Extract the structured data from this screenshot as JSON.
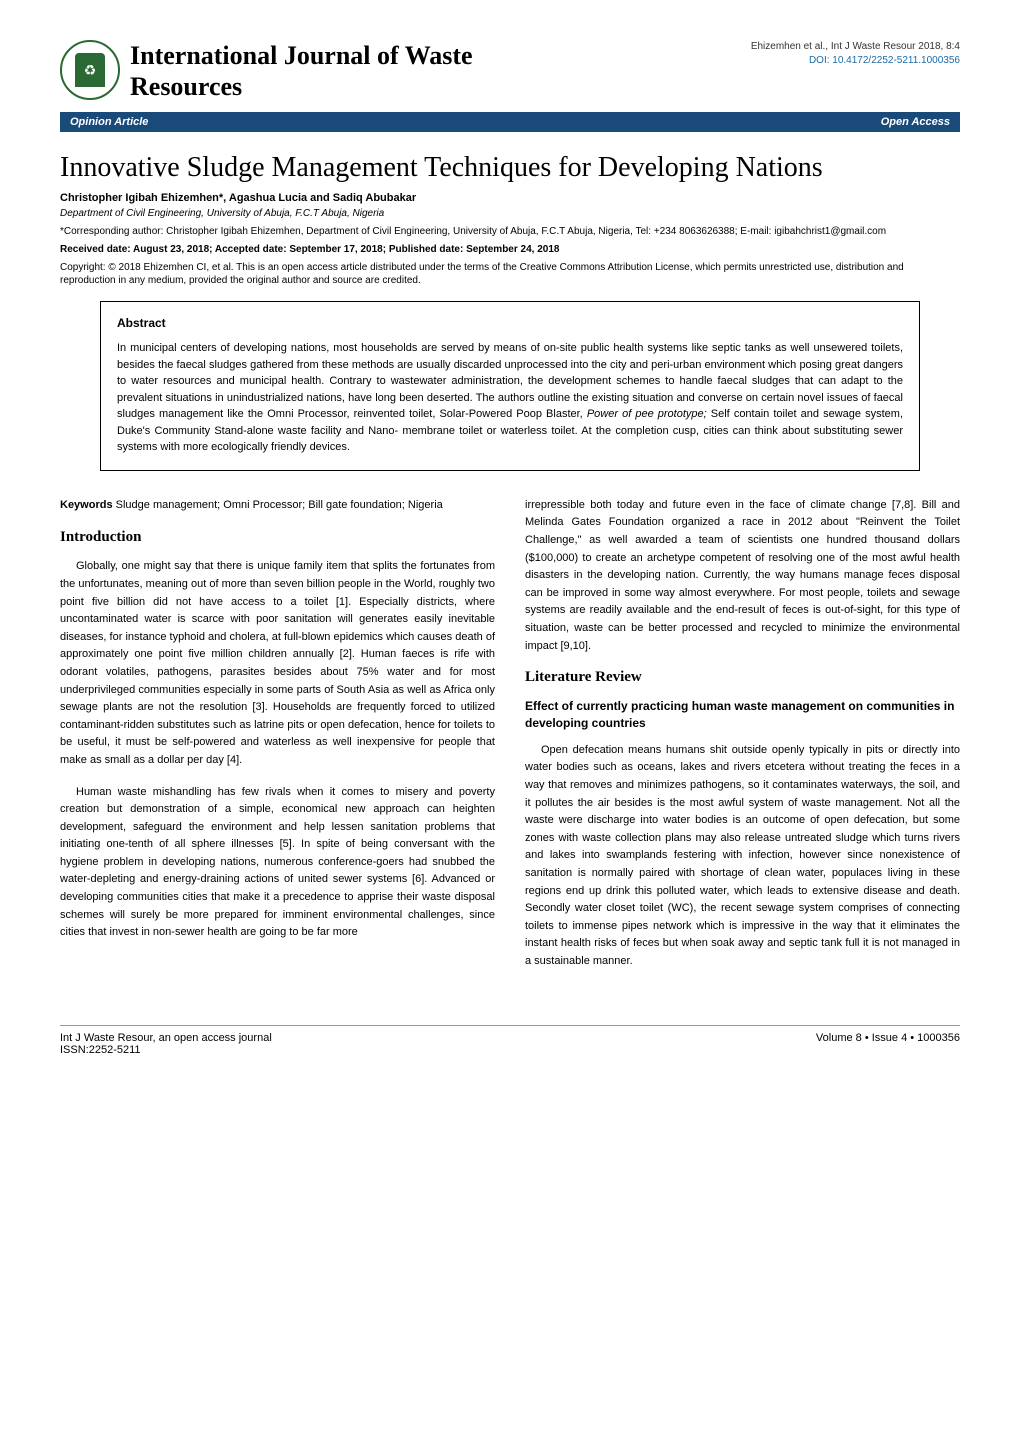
{
  "header": {
    "journal_title": "International Journal of Waste Resources",
    "citation": "Ehizemhen et al., Int J Waste Resour 2018, 8:4",
    "doi": "DOI: 10.4172/2252-5211.1000356",
    "doi_color": "#1a6ba8",
    "logo_text": "♻",
    "logo_border_color": "#2a6934",
    "issn": "ISSN: 2252-5211"
  },
  "bar": {
    "left": "Opinion Article",
    "right": "Open Access",
    "bg_color": "#1a4a7a"
  },
  "article": {
    "title": "Innovative Sludge Management Techniques for Developing Nations",
    "authors": "Christopher Igibah Ehizemhen*, Agashua Lucia and Sadiq Abubakar",
    "affiliation": "Department of Civil Engineering, University of Abuja, F.C.T Abuja, Nigeria",
    "corresponding": "*Corresponding author: Christopher Igibah Ehizemhen, Department of Civil Engineering, University of Abuja, F.C.T Abuja, Nigeria, Tel: +234 8063626388; E-mail: igibahchrist1@gmail.com",
    "dates": "Received date: August 23, 2018; Accepted date: September 17, 2018; Published date: September 24, 2018",
    "copyright": "Copyright: © 2018 Ehizemhen CI, et al. This is an open access article distributed under the terms of the Creative Commons Attribution License, which permits unrestricted use, distribution and reproduction in any medium, provided the original author and source are credited."
  },
  "abstract": {
    "heading": "Abstract",
    "text_a": "In municipal centers of developing nations, most households are served by means of on-site public health systems like septic tanks as well unsewered toilets, besides the faecal sludges gathered from these methods are usually discarded unprocessed into the city and peri-urban environment which posing great dangers to water resources and municipal health. Contrary to wastewater administration, the development schemes to handle faecal sludges that can adapt to the prevalent situations in unindustrialized nations, have long been deserted. The authors outline the existing situation and converse on certain novel issues of faecal sludges management like the Omni Processor, reinvented toilet, Solar-Powered Poop Blaster, ",
    "text_ital": "Power of pee prototype;",
    "text_b": " Self contain toilet and sewage system, Duke's Community Stand-alone waste facility and Nano- membrane toilet or waterless toilet. At the completion cusp, cities can think about substituting sewer systems with more ecologically friendly devices."
  },
  "keywords": {
    "label": "Keywords",
    "text": "Sludge management; Omni Processor; Bill gate foundation; Nigeria"
  },
  "sections": {
    "intro_heading": "Introduction",
    "intro_p1": "Globally, one might say that there is unique family item that splits the fortunates from the unfortunates, meaning out of more than seven billion people in the World, roughly two point five billion did not have access to a toilet [1]. Especially districts, where uncontaminated water is scarce with poor sanitation will generates easily inevitable diseases, for instance typhoid and cholera, at full-blown epidemics which causes death of approximately one point five million children annually [2]. Human faeces is rife with odorant volatiles, pathogens, parasites besides about 75% water and for most underprivileged communities especially in some parts of South Asia as well as Africa only sewage plants are not the resolution [3]. Households are frequently forced to utilized contaminant-ridden substitutes such as latrine pits or open defecation, hence for toilets to be useful, it must be self-powered and waterless as well inexpensive for people that make as small as a dollar per day [4].",
    "intro_p2": "Human waste mishandling has few rivals when it comes to misery and poverty creation but demonstration of a simple, economical new approach can heighten development, safeguard the environment and help lessen sanitation problems that initiating one-tenth of all sphere illnesses [5]. In spite of being conversant with the hygiene problem in developing nations, numerous conference-goers had snubbed the water-depleting and energy-draining actions of united sewer systems [6]. Advanced or developing communities cities that make it a precedence to apprise their waste disposal schemes will surely be more prepared for imminent environmental challenges, since cities that invest in non-sewer health are going to be far more",
    "intro_p2_cont": "irrepressible both today and future even in the face of climate change [7,8]. Bill and Melinda Gates Foundation organized a race in 2012 about \"Reinvent the Toilet Challenge,\" as well awarded a team of scientists one hundred thousand dollars ($100,000) to create an archetype competent of resolving one of the most awful health disasters in the developing nation. Currently, the way humans manage feces disposal can be improved in some way almost everywhere. For most people, toilets and sewage systems are readily available and the end-result of feces is out-of-sight, for this type of situation, waste can be better processed and recycled to minimize the environmental impact [9,10].",
    "litrev_heading": "Literature Review",
    "litrev_sub": "Effect of currently practicing human waste management on communities in developing countries",
    "litrev_p1": "Open defecation means humans shit outside openly typically in pits or directly into water bodies such as oceans, lakes and rivers etcetera without treating the feces in a way that removes and minimizes pathogens, so it contaminates waterways, the soil, and it pollutes the air besides is the most awful system of waste management. Not all the waste were discharge into water bodies is an outcome of open defecation, but some zones with waste collection plans may also release untreated sludge which turns rivers and lakes into swamplands festering with infection, however since nonexistence of sanitation is normally paired with shortage of clean water, populaces living in these regions end up drink this polluted water, which leads to extensive disease and death. Secondly water closet toilet (WC), the recent sewage system comprises of connecting toilets to immense pipes network which is impressive in the way that it eliminates the instant health risks of feces but when soak away and septic tank full it is not managed in a sustainable manner."
  },
  "footer": {
    "left_line1": "Int J Waste Resour, an open access journal",
    "left_line2": "ISSN:2252-5211",
    "right": "Volume 8 • Issue 4 • 1000356"
  },
  "styling": {
    "body_font": "Arial",
    "heading_font": "Georgia",
    "title_fontsize": 28,
    "journal_title_fontsize": 26,
    "body_fontsize": 11,
    "background_color": "#ffffff",
    "text_color": "#000000"
  }
}
